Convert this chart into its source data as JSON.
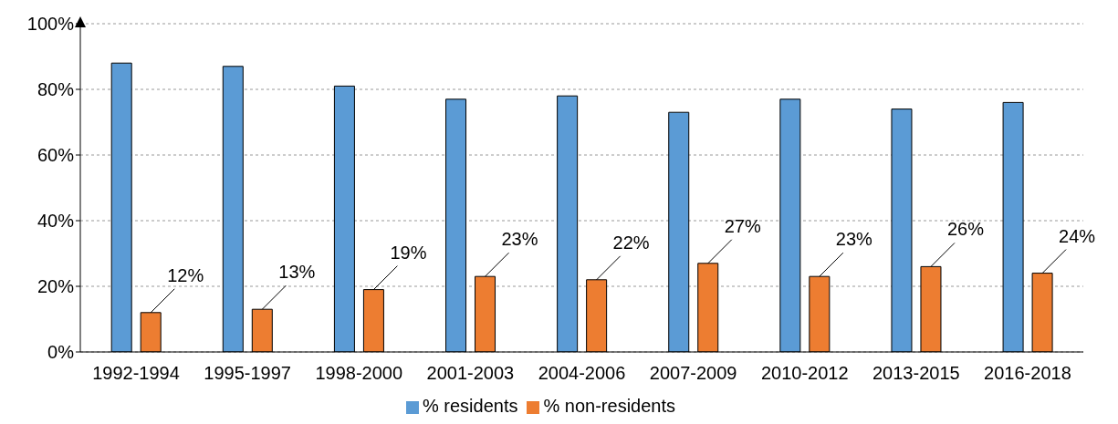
{
  "chart_data": {
    "type": "bar",
    "categories": [
      "1992-1994",
      "1995-1997",
      "1998-2000",
      "2001-2003",
      "2004-2006",
      "2007-2009",
      "2010-2012",
      "2013-2015",
      "2016-2018"
    ],
    "series": [
      {
        "name": "% residents",
        "color": "#5b9bd5",
        "values": [
          88,
          87,
          81,
          77,
          78,
          73,
          77,
          74,
          76
        ]
      },
      {
        "name": "% non-residents",
        "color": "#ed7d31",
        "values": [
          12,
          13,
          19,
          23,
          22,
          27,
          23,
          26,
          24
        ],
        "value_labels": [
          "12%",
          "13%",
          "19%",
          "23%",
          "22%",
          "27%",
          "23%",
          "26%",
          "24%"
        ]
      }
    ],
    "ylim": [
      0,
      100
    ],
    "yticks": [
      {
        "value": 0,
        "label": "0%"
      },
      {
        "value": 20,
        "label": "20%"
      },
      {
        "value": 40,
        "label": "40%"
      },
      {
        "value": 60,
        "label": "60%"
      },
      {
        "value": 80,
        "label": "80%"
      },
      {
        "value": 100,
        "label": "100%"
      }
    ],
    "grid": "y",
    "legend": "bottom"
  }
}
